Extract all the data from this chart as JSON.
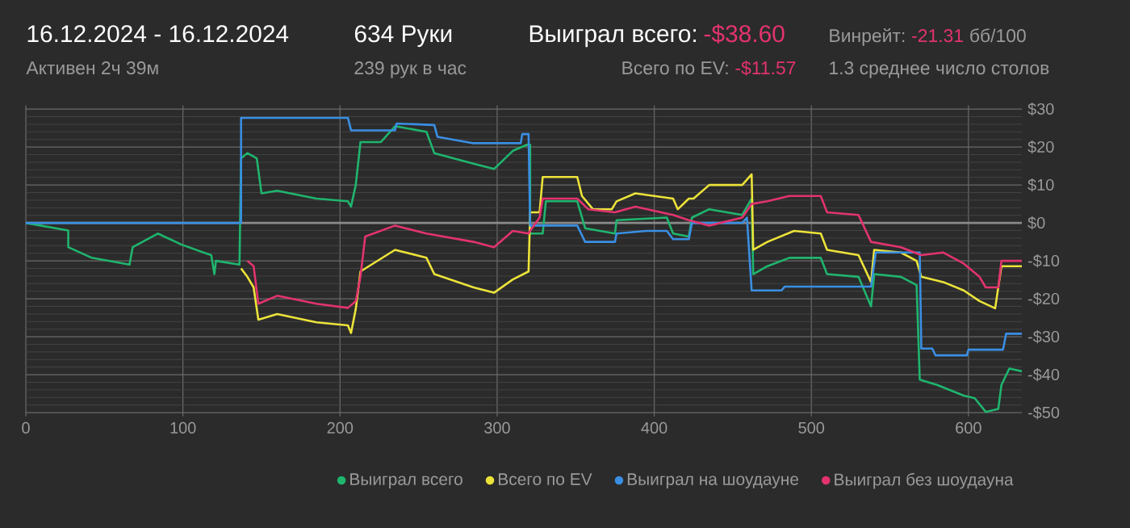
{
  "chart_data": {
    "type": "line",
    "title": "16.12.2024 - 16.12.2024",
    "subtitle": "Активен 2ч 39м",
    "annotations": [
      "634 Руки",
      "239 рук в час",
      "Выиграл всего:",
      "-$38.60",
      "Винрейт:",
      "-21.31",
      "бб/100",
      "Всего по EV:",
      "-$11.57",
      "1.3 среднее число столов"
    ],
    "series": [
      {
        "name": "Выиграл всего",
        "color": "#1fb56e",
        "x": [
          0,
          27,
          27,
          42,
          66,
          68,
          84,
          99,
          118,
          120,
          121,
          136,
          137,
          141,
          147,
          150,
          160,
          185,
          205,
          207,
          210,
          213,
          226,
          235,
          255,
          260,
          285,
          298,
          310,
          319,
          321,
          321,
          329,
          331,
          351,
          356,
          375,
          376,
          408,
          412,
          422,
          424,
          435,
          456,
          462,
          463,
          472,
          486,
          506,
          510,
          530,
          538,
          540,
          557,
          567,
          569,
          580,
          597,
          604,
          611,
          619,
          621,
          626,
          634
        ],
        "values": [
          0,
          -2,
          -6.4,
          -9.2,
          -11,
          -6.4,
          -2.8,
          -5.7,
          -8.5,
          -13.5,
          -10,
          -11,
          17,
          18.4,
          17,
          7.8,
          8.5,
          6.4,
          5.7,
          4.3,
          10,
          21.3,
          21.3,
          25.5,
          24,
          18.4,
          15.6,
          14.2,
          19,
          20.6,
          20.6,
          -2.8,
          -2.8,
          5.7,
          5.7,
          -1.4,
          -2.8,
          0.7,
          1.4,
          -2.8,
          -3.6,
          1.4,
          3.6,
          2.1,
          6.4,
          -13.5,
          -11.4,
          -9.2,
          -9.2,
          -13.5,
          -14.2,
          -22,
          -13.5,
          -14.2,
          -16.4,
          -41.3,
          -42.7,
          -45.5,
          -46.2,
          -49.8,
          -49,
          -42.7,
          -38.4,
          -39.1
        ]
      },
      {
        "name": "Всего по EV",
        "color": "#ece33a",
        "x": [
          137,
          141,
          145,
          148,
          160,
          185,
          205,
          207,
          210,
          213,
          235,
          255,
          260,
          285,
          298,
          310,
          320,
          321,
          327,
          329,
          351,
          354,
          361,
          373,
          376,
          388,
          412,
          415,
          422,
          425,
          435,
          456,
          462,
          463,
          472,
          489,
          506,
          510,
          530,
          538,
          540,
          557,
          567,
          570,
          584,
          597,
          607,
          617,
          621,
          634
        ],
        "values": [
          -12,
          -14.2,
          -17,
          -25.5,
          -24,
          -26.2,
          -27,
          -29,
          -22.7,
          -12.8,
          -7.1,
          -9.2,
          -13.5,
          -17,
          -18.4,
          -14.9,
          -12.8,
          2.8,
          2.8,
          12.1,
          12.1,
          7.1,
          3.6,
          3.6,
          5.7,
          7.8,
          6.4,
          3.6,
          6.4,
          6.4,
          10,
          10,
          12.8,
          -7.1,
          -5,
          -2.1,
          -2.8,
          -7.1,
          -8.5,
          -15.6,
          -7.1,
          -7.8,
          -10,
          -14.2,
          -15.6,
          -17.8,
          -20.6,
          -22.5,
          -11.4,
          -11.4
        ]
      },
      {
        "name": "Выиграл на шоудауне",
        "color": "#3a8fe3",
        "x": [
          0,
          137,
          137,
          205,
          207,
          235,
          236,
          260,
          262,
          285,
          315,
          316,
          320,
          321,
          351,
          356,
          375,
          376,
          395,
          408,
          412,
          422,
          424,
          456,
          459,
          462,
          481,
          483,
          538,
          541,
          569,
          570,
          577,
          579,
          599,
          600,
          622,
          624,
          634
        ],
        "values": [
          0,
          0,
          27.7,
          27.7,
          24.4,
          24.4,
          26.2,
          25.8,
          22.7,
          21,
          21,
          23.4,
          23.4,
          -0.7,
          -0.7,
          -5,
          -5,
          -2.8,
          -2.1,
          -2.1,
          -4.3,
          -4.3,
          0,
          0,
          1.4,
          -17.8,
          -17.8,
          -16.8,
          -16.8,
          -7.8,
          -7.8,
          -33.1,
          -33.1,
          -34.9,
          -34.9,
          -33.4,
          -33.4,
          -29.2,
          -29.2
        ]
      },
      {
        "name": "Выиграл без шоудауна",
        "color": "#e2336f",
        "x": [
          141,
          145,
          148,
          160,
          185,
          205,
          210,
          213,
          216,
          235,
          255,
          285,
          298,
          310,
          320,
          321,
          327,
          329,
          351,
          358,
          375,
          388,
          412,
          422,
          435,
          456,
          462,
          472,
          486,
          506,
          510,
          530,
          538,
          557,
          570,
          584,
          597,
          607,
          611,
          619,
          621,
          634
        ],
        "values": [
          -10,
          -11.4,
          -21.3,
          -19.2,
          -21.3,
          -22.4,
          -20.6,
          -14.2,
          -3.6,
          -0.7,
          -2.8,
          -5,
          -6.4,
          -2.1,
          -2.8,
          -2.1,
          1.4,
          6.4,
          6.4,
          3.6,
          2.8,
          4.3,
          2.1,
          0.7,
          -0.7,
          1.4,
          5,
          5.7,
          7.1,
          7.1,
          2.8,
          2.1,
          -5,
          -6.4,
          -8.5,
          -7.8,
          -10.7,
          -14.2,
          -17,
          -17,
          -10,
          -10
        ]
      }
    ],
    "xlim": [
      0,
      634
    ],
    "ylim": [
      -51,
      31
    ],
    "xticks": [
      0,
      100,
      200,
      300,
      400,
      500,
      600
    ],
    "yticks": [
      {
        "value": -50,
        "label": "-$50"
      },
      {
        "value": -40,
        "label": "-$40"
      },
      {
        "value": -30,
        "label": "-$30"
      },
      {
        "value": -20,
        "label": "-$20"
      },
      {
        "value": -10,
        "label": "-$10"
      },
      {
        "value": 0,
        "label": "$0"
      },
      {
        "value": 10,
        "label": "$10"
      },
      {
        "value": 20,
        "label": "$20"
      },
      {
        "value": 30,
        "label": "$30"
      }
    ],
    "ref_lines": [
      {
        "axis": "y",
        "value": 0,
        "color": "#8a8a8a"
      }
    ],
    "grid": true,
    "legend": "bottom",
    "marker": "none",
    "line_style": "solid"
  }
}
